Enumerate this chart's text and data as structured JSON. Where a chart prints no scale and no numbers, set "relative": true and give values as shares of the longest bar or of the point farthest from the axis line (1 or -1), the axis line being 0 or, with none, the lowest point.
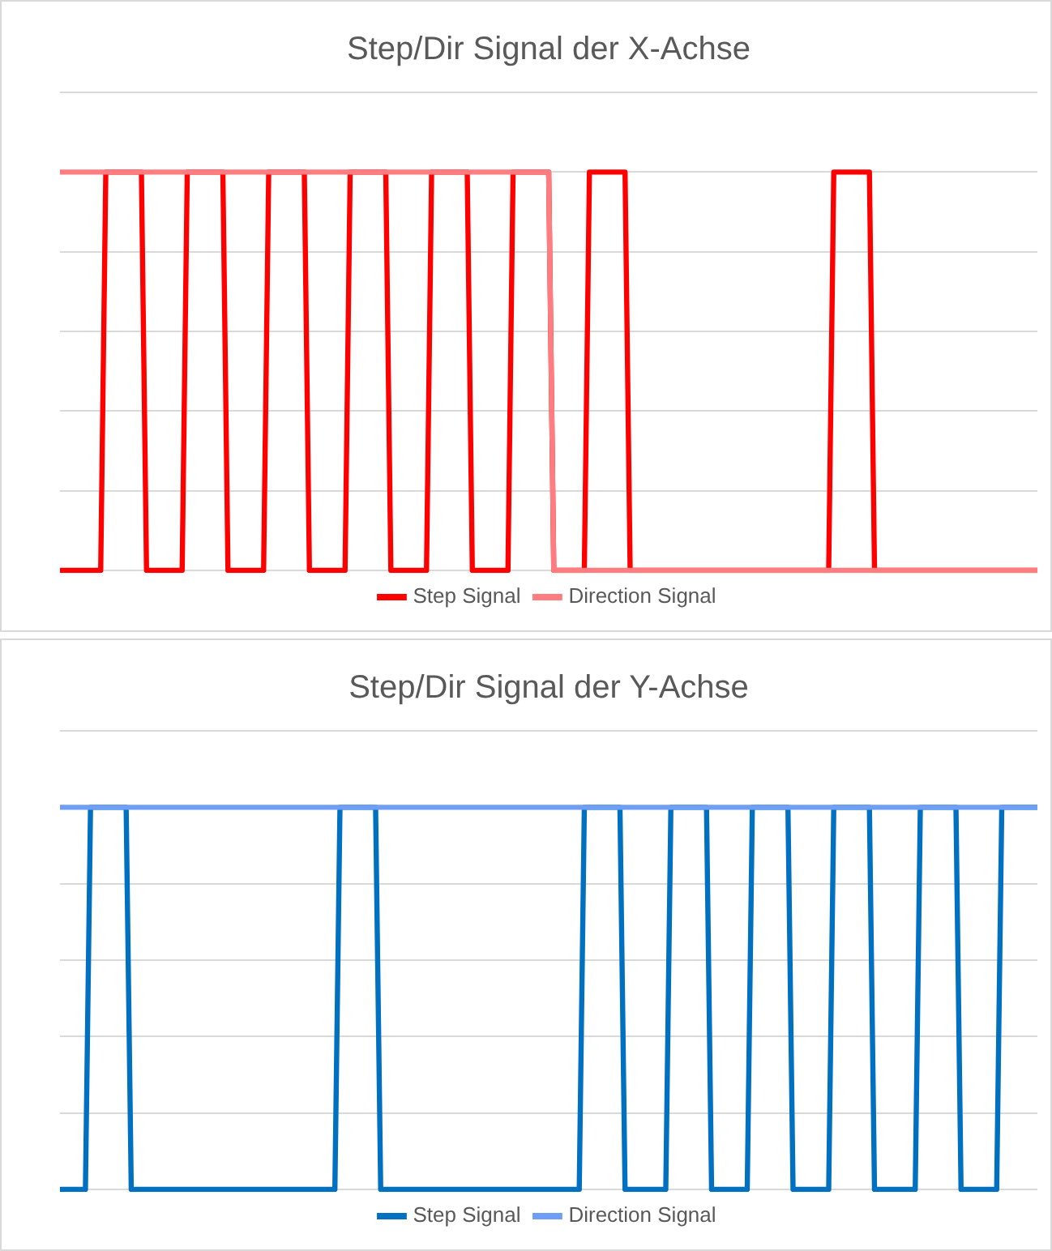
{
  "chart_data": [
    {
      "type": "line",
      "title": "Step/Dir Signal der X-Achse",
      "relative": true,
      "grid": "y",
      "legend": "bottom",
      "tick_labels": false,
      "marker": "none",
      "line_style": "solid",
      "categories": [
        null,
        null,
        null,
        null,
        null,
        null,
        null,
        null,
        null,
        null,
        null,
        null,
        null,
        null,
        null,
        null,
        null,
        null,
        null,
        null,
        null,
        null,
        null,
        null,
        null,
        null,
        null,
        null,
        null,
        null,
        null,
        null,
        null,
        null,
        null,
        null,
        null,
        null,
        null,
        null,
        null,
        null,
        null,
        null,
        null,
        null,
        null,
        null,
        null,
        null,
        null,
        null,
        null,
        null,
        null,
        null,
        null,
        null,
        null,
        null,
        null,
        null,
        null,
        null,
        null,
        null,
        null,
        null,
        null,
        null,
        null,
        null,
        null,
        null,
        null,
        null,
        null,
        null,
        null,
        null,
        null,
        null,
        null,
        null,
        null,
        null,
        null,
        null,
        null,
        null,
        null,
        null,
        null,
        null,
        null,
        null,
        null,
        null,
        null,
        null,
        null,
        null,
        null,
        null,
        null,
        null,
        null,
        null,
        null,
        null,
        null,
        null,
        null,
        null,
        null,
        null,
        null,
        null,
        null,
        null,
        null,
        null,
        null,
        null,
        null,
        null,
        null,
        null,
        null,
        null,
        null,
        null,
        null,
        null,
        null,
        null,
        null,
        null,
        null,
        null,
        null,
        null,
        null,
        null,
        null,
        null,
        null,
        null,
        null,
        null,
        null,
        null,
        null,
        null,
        null,
        null,
        null,
        null,
        null,
        null,
        null,
        null,
        null,
        null,
        null,
        null,
        null,
        null,
        null,
        null,
        null,
        null,
        null,
        null,
        null,
        null,
        null,
        null,
        null,
        null,
        null,
        null,
        null,
        null,
        null,
        null,
        null,
        null,
        null,
        null,
        null,
        null,
        null
      ],
      "series": [
        {
          "name": "Step Signal",
          "color": "#ff0000",
          "values": [
            0,
            0,
            0,
            0,
            0,
            0,
            0,
            0,
            0,
            1,
            1,
            1,
            1,
            1,
            1,
            1,
            1,
            0,
            0,
            0,
            0,
            0,
            0,
            0,
            0,
            1,
            1,
            1,
            1,
            1,
            1,
            1,
            1,
            0,
            0,
            0,
            0,
            0,
            0,
            0,
            0,
            1,
            1,
            1,
            1,
            1,
            1,
            1,
            1,
            0,
            0,
            0,
            0,
            0,
            0,
            0,
            0,
            1,
            1,
            1,
            1,
            1,
            1,
            1,
            1,
            0,
            0,
            0,
            0,
            0,
            0,
            0,
            0,
            1,
            1,
            1,
            1,
            1,
            1,
            1,
            1,
            0,
            0,
            0,
            0,
            0,
            0,
            0,
            0,
            1,
            1,
            1,
            1,
            1,
            1,
            1,
            1,
            0,
            0,
            0,
            0,
            0,
            0,
            0,
            1,
            1,
            1,
            1,
            1,
            1,
            1,
            1,
            0,
            0,
            0,
            0,
            0,
            0,
            0,
            0,
            0,
            0,
            0,
            0,
            0,
            0,
            0,
            0,
            0,
            0,
            0,
            0,
            0,
            0,
            0,
            0,
            0,
            0,
            0,
            0,
            0,
            0,
            0,
            0,
            0,
            0,
            0,
            0,
            0,
            0,
            0,
            0,
            1,
            1,
            1,
            1,
            1,
            1,
            1,
            1,
            0,
            0,
            0,
            0,
            0,
            0,
            0,
            0,
            0,
            0,
            0,
            0,
            0,
            0,
            0,
            0,
            0,
            0,
            0,
            0,
            0,
            0,
            0,
            0,
            0,
            0,
            0,
            0,
            0,
            0,
            0,
            0,
            0
          ]
        },
        {
          "name": "Direction Signal",
          "color": "#ff7c80",
          "values": [
            1,
            1,
            1,
            1,
            1,
            1,
            1,
            1,
            1,
            1,
            1,
            1,
            1,
            1,
            1,
            1,
            1,
            1,
            1,
            1,
            1,
            1,
            1,
            1,
            1,
            1,
            1,
            1,
            1,
            1,
            1,
            1,
            1,
            1,
            1,
            1,
            1,
            1,
            1,
            1,
            1,
            1,
            1,
            1,
            1,
            1,
            1,
            1,
            1,
            1,
            1,
            1,
            1,
            1,
            1,
            1,
            1,
            1,
            1,
            1,
            1,
            1,
            1,
            1,
            1,
            1,
            1,
            1,
            1,
            1,
            1,
            1,
            1,
            1,
            1,
            1,
            1,
            1,
            1,
            1,
            1,
            1,
            1,
            1,
            1,
            1,
            1,
            1,
            1,
            1,
            1,
            1,
            1,
            1,
            1,
            1,
            1,
            0,
            0,
            0,
            0,
            0,
            0,
            0,
            0,
            0,
            0,
            0,
            0,
            0,
            0,
            0,
            0,
            0,
            0,
            0,
            0,
            0,
            0,
            0,
            0,
            0,
            0,
            0,
            0,
            0,
            0,
            0,
            0,
            0,
            0,
            0,
            0,
            0,
            0,
            0,
            0,
            0,
            0,
            0,
            0,
            0,
            0,
            0,
            0,
            0,
            0,
            0,
            0,
            0,
            0,
            0,
            0,
            0,
            0,
            0,
            0,
            0,
            0,
            0,
            0,
            0,
            0,
            0,
            0,
            0,
            0,
            0,
            0,
            0,
            0,
            0,
            0,
            0,
            0,
            0,
            0,
            0,
            0,
            0,
            0,
            0,
            0,
            0,
            0,
            0,
            0,
            0,
            0,
            0,
            0,
            0,
            0
          ]
        }
      ]
    },
    {
      "type": "line",
      "title": "Step/Dir Signal der Y-Achse",
      "relative": true,
      "grid": "y",
      "legend": "bottom",
      "tick_labels": false,
      "marker": "none",
      "line_style": "solid",
      "categories": [
        null,
        null,
        null,
        null,
        null,
        null,
        null,
        null,
        null,
        null,
        null,
        null,
        null,
        null,
        null,
        null,
        null,
        null,
        null,
        null,
        null,
        null,
        null,
        null,
        null,
        null,
        null,
        null,
        null,
        null,
        null,
        null,
        null,
        null,
        null,
        null,
        null,
        null,
        null,
        null,
        null,
        null,
        null,
        null,
        null,
        null,
        null,
        null,
        null,
        null,
        null,
        null,
        null,
        null,
        null,
        null,
        null,
        null,
        null,
        null,
        null,
        null,
        null,
        null,
        null,
        null,
        null,
        null,
        null,
        null,
        null,
        null,
        null,
        null,
        null,
        null,
        null,
        null,
        null,
        null,
        null,
        null,
        null,
        null,
        null,
        null,
        null,
        null,
        null,
        null,
        null,
        null,
        null,
        null,
        null,
        null,
        null,
        null,
        null,
        null,
        null,
        null,
        null,
        null,
        null,
        null,
        null,
        null,
        null,
        null,
        null,
        null,
        null,
        null,
        null,
        null,
        null,
        null,
        null,
        null,
        null,
        null,
        null,
        null,
        null,
        null,
        null,
        null,
        null,
        null,
        null,
        null,
        null,
        null,
        null,
        null,
        null,
        null,
        null,
        null,
        null,
        null,
        null,
        null,
        null,
        null,
        null,
        null,
        null,
        null,
        null,
        null,
        null,
        null,
        null,
        null,
        null,
        null,
        null,
        null,
        null,
        null,
        null,
        null,
        null,
        null,
        null,
        null,
        null,
        null,
        null,
        null,
        null,
        null,
        null,
        null,
        null,
        null,
        null,
        null,
        null,
        null,
        null,
        null,
        null,
        null,
        null,
        null,
        null,
        null,
        null,
        null,
        null
      ],
      "series": [
        {
          "name": "Step Signal",
          "color": "#0070c0",
          "values": [
            0,
            0,
            0,
            0,
            0,
            0,
            1,
            1,
            1,
            1,
            1,
            1,
            1,
            1,
            0,
            0,
            0,
            0,
            0,
            0,
            0,
            0,
            0,
            0,
            0,
            0,
            0,
            0,
            0,
            0,
            0,
            0,
            0,
            0,
            0,
            0,
            0,
            0,
            0,
            0,
            0,
            0,
            0,
            0,
            0,
            0,
            0,
            0,
            0,
            0,
            0,
            0,
            0,
            0,
            0,
            1,
            1,
            1,
            1,
            1,
            1,
            1,
            1,
            0,
            0,
            0,
            0,
            0,
            0,
            0,
            0,
            0,
            0,
            0,
            0,
            0,
            0,
            0,
            0,
            0,
            0,
            0,
            0,
            0,
            0,
            0,
            0,
            0,
            0,
            0,
            0,
            0,
            0,
            0,
            0,
            0,
            0,
            0,
            0,
            0,
            0,
            0,
            0,
            1,
            1,
            1,
            1,
            1,
            1,
            1,
            1,
            0,
            0,
            0,
            0,
            0,
            0,
            0,
            0,
            0,
            1,
            1,
            1,
            1,
            1,
            1,
            1,
            1,
            0,
            0,
            0,
            0,
            0,
            0,
            0,
            0,
            1,
            1,
            1,
            1,
            1,
            1,
            1,
            1,
            0,
            0,
            0,
            0,
            0,
            0,
            0,
            0,
            1,
            1,
            1,
            1,
            1,
            1,
            1,
            1,
            0,
            0,
            0,
            0,
            0,
            0,
            0,
            0,
            0,
            1,
            1,
            1,
            1,
            1,
            1,
            1,
            1,
            0,
            0,
            0,
            0,
            0,
            0,
            0,
            0,
            1,
            1,
            1,
            1,
            1,
            1,
            1,
            1
          ]
        },
        {
          "name": "Direction Signal",
          "color": "#6e9ff5",
          "values": [
            1,
            1,
            1,
            1,
            1,
            1,
            1,
            1,
            1,
            1,
            1,
            1,
            1,
            1,
            1,
            1,
            1,
            1,
            1,
            1,
            1,
            1,
            1,
            1,
            1,
            1,
            1,
            1,
            1,
            1,
            1,
            1,
            1,
            1,
            1,
            1,
            1,
            1,
            1,
            1,
            1,
            1,
            1,
            1,
            1,
            1,
            1,
            1,
            1,
            1,
            1,
            1,
            1,
            1,
            1,
            1,
            1,
            1,
            1,
            1,
            1,
            1,
            1,
            1,
            1,
            1,
            1,
            1,
            1,
            1,
            1,
            1,
            1,
            1,
            1,
            1,
            1,
            1,
            1,
            1,
            1,
            1,
            1,
            1,
            1,
            1,
            1,
            1,
            1,
            1,
            1,
            1,
            1,
            1,
            1,
            1,
            1,
            1,
            1,
            1,
            1,
            1,
            1,
            1,
            1,
            1,
            1,
            1,
            1,
            1,
            1,
            1,
            1,
            1,
            1,
            1,
            1,
            1,
            1,
            1,
            1,
            1,
            1,
            1,
            1,
            1,
            1,
            1,
            1,
            1,
            1,
            1,
            1,
            1,
            1,
            1,
            1,
            1,
            1,
            1,
            1,
            1,
            1,
            1,
            1,
            1,
            1,
            1,
            1,
            1,
            1,
            1,
            1,
            1,
            1,
            1,
            1,
            1,
            1,
            1,
            1,
            1,
            1,
            1,
            1,
            1,
            1,
            1,
            1,
            1,
            1,
            1,
            1,
            1,
            1,
            1,
            1,
            1,
            1,
            1,
            1,
            1,
            1,
            1,
            1,
            1,
            1,
            1,
            1,
            1,
            1,
            1,
            1
          ]
        }
      ]
    }
  ]
}
